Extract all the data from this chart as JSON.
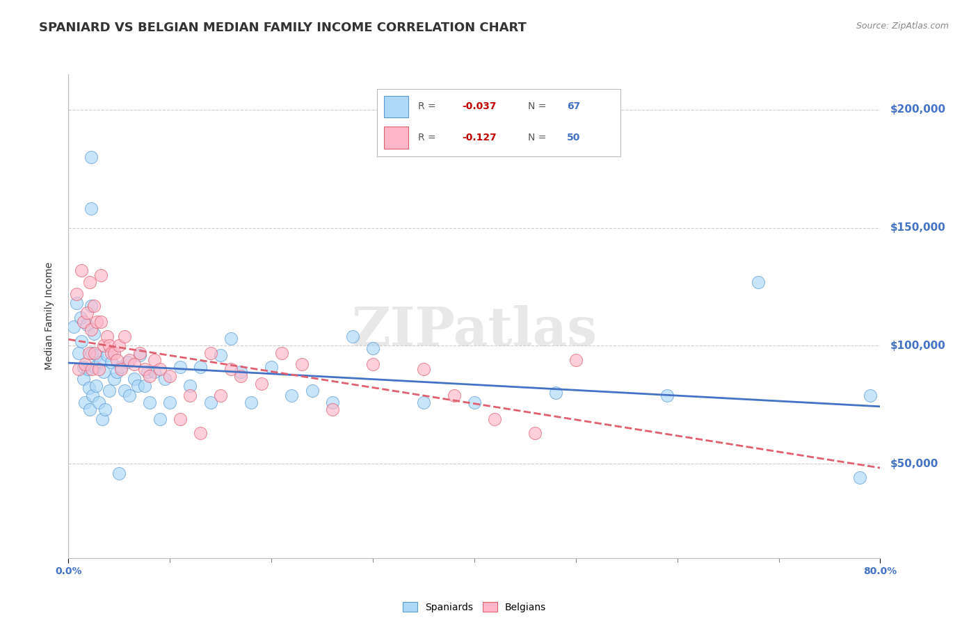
{
  "title": "SPANIARD VS BELGIAN MEDIAN FAMILY INCOME CORRELATION CHART",
  "source": "Source: ZipAtlas.com",
  "ylabel": "Median Family Income",
  "right_ytick_labels": [
    "$50,000",
    "$100,000",
    "$150,000",
    "$200,000"
  ],
  "right_ytick_values": [
    50000,
    100000,
    150000,
    200000
  ],
  "right_ytick_color": "#4472C4",
  "xmin": 0.0,
  "xmax": 0.8,
  "ymin": 10000,
  "ymax": 215000,
  "xtick_labels_ends": [
    "0.0%",
    "80.0%"
  ],
  "xtick_values_ends": [
    0.0,
    0.8
  ],
  "spaniards_color": "#ADD8F7",
  "belgians_color": "#FFB6C8",
  "spaniards_edge_color": "#5B9BD5",
  "belgians_edge_color": "#E06070",
  "trend_spaniards_color": "#4472C4",
  "trend_belgians_color": "#E06070",
  "watermark": "ZIPatlas",
  "watermark_color": "#DDDDDD",
  "spaniards_x": [
    0.005,
    0.008,
    0.01,
    0.012,
    0.013,
    0.015,
    0.015,
    0.016,
    0.018,
    0.019,
    0.02,
    0.021,
    0.022,
    0.022,
    0.023,
    0.024,
    0.025,
    0.026,
    0.027,
    0.028,
    0.03,
    0.031,
    0.033,
    0.035,
    0.036,
    0.038,
    0.04,
    0.042,
    0.045,
    0.048,
    0.05,
    0.052,
    0.055,
    0.058,
    0.06,
    0.065,
    0.068,
    0.07,
    0.075,
    0.078,
    0.08,
    0.085,
    0.09,
    0.095,
    0.1,
    0.11,
    0.12,
    0.13,
    0.14,
    0.15,
    0.16,
    0.17,
    0.18,
    0.2,
    0.22,
    0.24,
    0.26,
    0.28,
    0.3,
    0.35,
    0.4,
    0.48,
    0.59,
    0.68,
    0.78,
    0.79,
    0.022
  ],
  "spaniards_y": [
    108000,
    118000,
    97000,
    112000,
    102000,
    91000,
    86000,
    76000,
    109000,
    90000,
    82000,
    73000,
    158000,
    117000,
    97000,
    79000,
    105000,
    91000,
    83000,
    96000,
    76000,
    93000,
    69000,
    89000,
    73000,
    96000,
    81000,
    93000,
    86000,
    89000,
    46000,
    91000,
    81000,
    93000,
    79000,
    86000,
    83000,
    96000,
    83000,
    89000,
    76000,
    89000,
    69000,
    86000,
    76000,
    91000,
    83000,
    91000,
    76000,
    96000,
    103000,
    89000,
    76000,
    91000,
    79000,
    81000,
    76000,
    104000,
    99000,
    76000,
    76000,
    80000,
    79000,
    127000,
    44000,
    79000,
    180000
  ],
  "belgians_x": [
    0.008,
    0.01,
    0.013,
    0.015,
    0.016,
    0.018,
    0.02,
    0.021,
    0.022,
    0.023,
    0.025,
    0.026,
    0.028,
    0.03,
    0.032,
    0.035,
    0.038,
    0.04,
    0.042,
    0.045,
    0.048,
    0.05,
    0.052,
    0.055,
    0.06,
    0.065,
    0.07,
    0.075,
    0.08,
    0.085,
    0.09,
    0.1,
    0.11,
    0.12,
    0.13,
    0.14,
    0.15,
    0.16,
    0.17,
    0.19,
    0.21,
    0.23,
    0.26,
    0.3,
    0.35,
    0.38,
    0.42,
    0.46,
    0.5,
    0.032
  ],
  "belgians_y": [
    122000,
    90000,
    132000,
    110000,
    92000,
    114000,
    97000,
    127000,
    107000,
    90000,
    117000,
    97000,
    110000,
    90000,
    110000,
    100000,
    104000,
    100000,
    97000,
    97000,
    94000,
    100000,
    90000,
    104000,
    94000,
    92000,
    97000,
    90000,
    87000,
    94000,
    90000,
    87000,
    69000,
    79000,
    63000,
    97000,
    79000,
    90000,
    87000,
    84000,
    97000,
    92000,
    73000,
    92000,
    90000,
    79000,
    69000,
    63000,
    94000,
    130000
  ],
  "background_color": "#FFFFFF",
  "plot_bg_color": "#FFFFFF",
  "grid_color": "#CCCCCC",
  "title_fontsize": 13,
  "axis_label_fontsize": 10,
  "tick_fontsize": 10,
  "marker_size": 13,
  "marker_alpha": 0.65
}
